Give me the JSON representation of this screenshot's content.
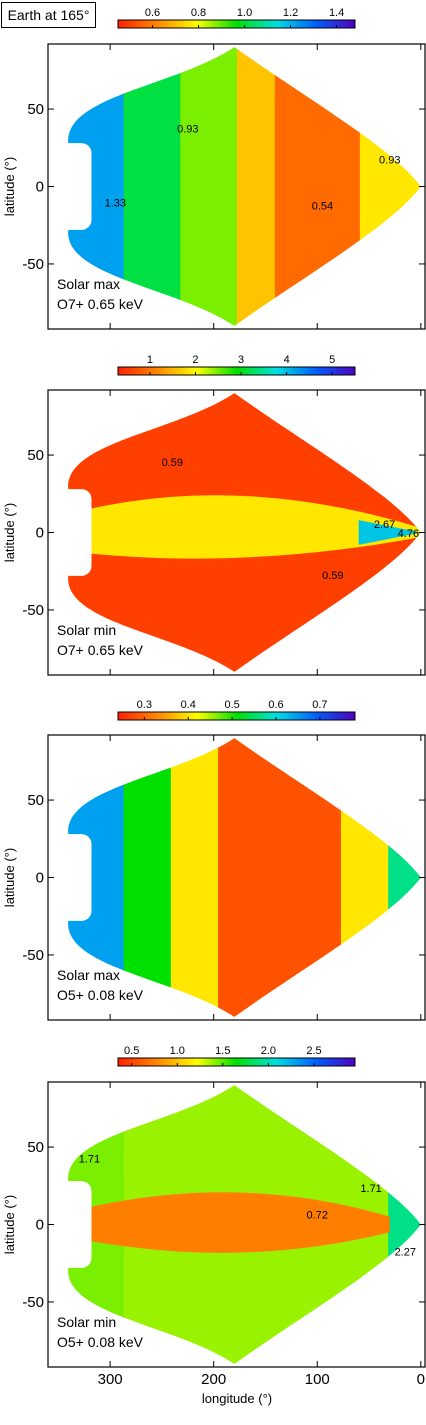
{
  "header": {
    "title": "Earth at 165°"
  },
  "chart_data": [
    {
      "type": "heatmap",
      "colorbar": {
        "ticks": [
          "0.6",
          "0.8",
          "1.0",
          "1.2",
          "1.4"
        ],
        "range": [
          0.45,
          1.48
        ]
      },
      "xlabel": "longitude (°)",
      "ylabel": "latitude (°)",
      "xticks": [
        "300",
        "200",
        "100",
        "0"
      ],
      "yticks": [
        "50",
        "0",
        "-50"
      ],
      "xlim": [
        360,
        -5
      ],
      "ylim": [
        -92,
        92
      ],
      "legend": "bottom-left",
      "annotation_lines": [
        "Solar max",
        "O7+ 0.65 keV"
      ],
      "contour_labels": [
        {
          "text": "0.93",
          "lon": 225,
          "lat": 35
        },
        {
          "text": "0.93",
          "lon": 30,
          "lat": 15
        },
        {
          "text": "0.54",
          "lon": 95,
          "lat": -15
        },
        {
          "text": "1.33",
          "lon": 295,
          "lat": -13
        }
      ]
    },
    {
      "type": "heatmap",
      "colorbar": {
        "ticks": [
          "1",
          "2",
          "3",
          "4",
          "5"
        ],
        "range": [
          0.3,
          5.5
        ]
      },
      "xlabel": "longitude (°)",
      "ylabel": "latitude (°)",
      "xticks": [
        "300",
        "200",
        "100",
        "0"
      ],
      "yticks": [
        "50",
        "0",
        "-50"
      ],
      "xlim": [
        360,
        -5
      ],
      "ylim": [
        -92,
        92
      ],
      "legend": "bottom-left",
      "annotation_lines": [
        "Solar min",
        "O7+ 0.65 keV"
      ],
      "contour_labels": [
        {
          "text": "0.59",
          "lon": 240,
          "lat": 43
        },
        {
          "text": "0.59",
          "lon": 85,
          "lat": -30
        },
        {
          "text": "2.67",
          "lon": 35,
          "lat": 3
        },
        {
          "text": "4.76",
          "lon": 12,
          "lat": -3
        }
      ]
    },
    {
      "type": "heatmap",
      "colorbar": {
        "ticks": [
          "0.3",
          "0.4",
          "0.5",
          "0.6",
          "0.7"
        ],
        "range": [
          0.24,
          0.78
        ]
      },
      "xlabel": "longitude (°)",
      "ylabel": "latitude (°)",
      "xticks": [
        "300",
        "200",
        "100",
        "0"
      ],
      "yticks": [
        "50",
        "0",
        "-50"
      ],
      "xlim": [
        360,
        -5
      ],
      "ylim": [
        -92,
        92
      ],
      "legend": "bottom-left",
      "annotation_lines": [
        "Solar max",
        "O5+ 0.08 keV"
      ],
      "contour_labels": []
    },
    {
      "type": "heatmap",
      "colorbar": {
        "ticks": [
          "0.5",
          "1.0",
          "1.5",
          "2.0",
          "2.5"
        ],
        "range": [
          0.35,
          2.95
        ]
      },
      "xlabel": "longitude (°)",
      "ylabel": "latitude (°)",
      "xticks": [
        "300",
        "200",
        "100",
        "0"
      ],
      "yticks": [
        "50",
        "0",
        "-50"
      ],
      "xlim": [
        360,
        -5
      ],
      "ylim": [
        -92,
        92
      ],
      "legend": "bottom-left",
      "annotation_lines": [
        "Solar min",
        "O5+ 0.08 keV"
      ],
      "contour_labels": [
        {
          "text": "1.71",
          "lon": 320,
          "lat": 40
        },
        {
          "text": "1.71",
          "lon": 48,
          "lat": 21
        },
        {
          "text": "0.72",
          "lon": 100,
          "lat": 4
        },
        {
          "text": "2.27",
          "lon": 15,
          "lat": -20
        }
      ]
    }
  ]
}
